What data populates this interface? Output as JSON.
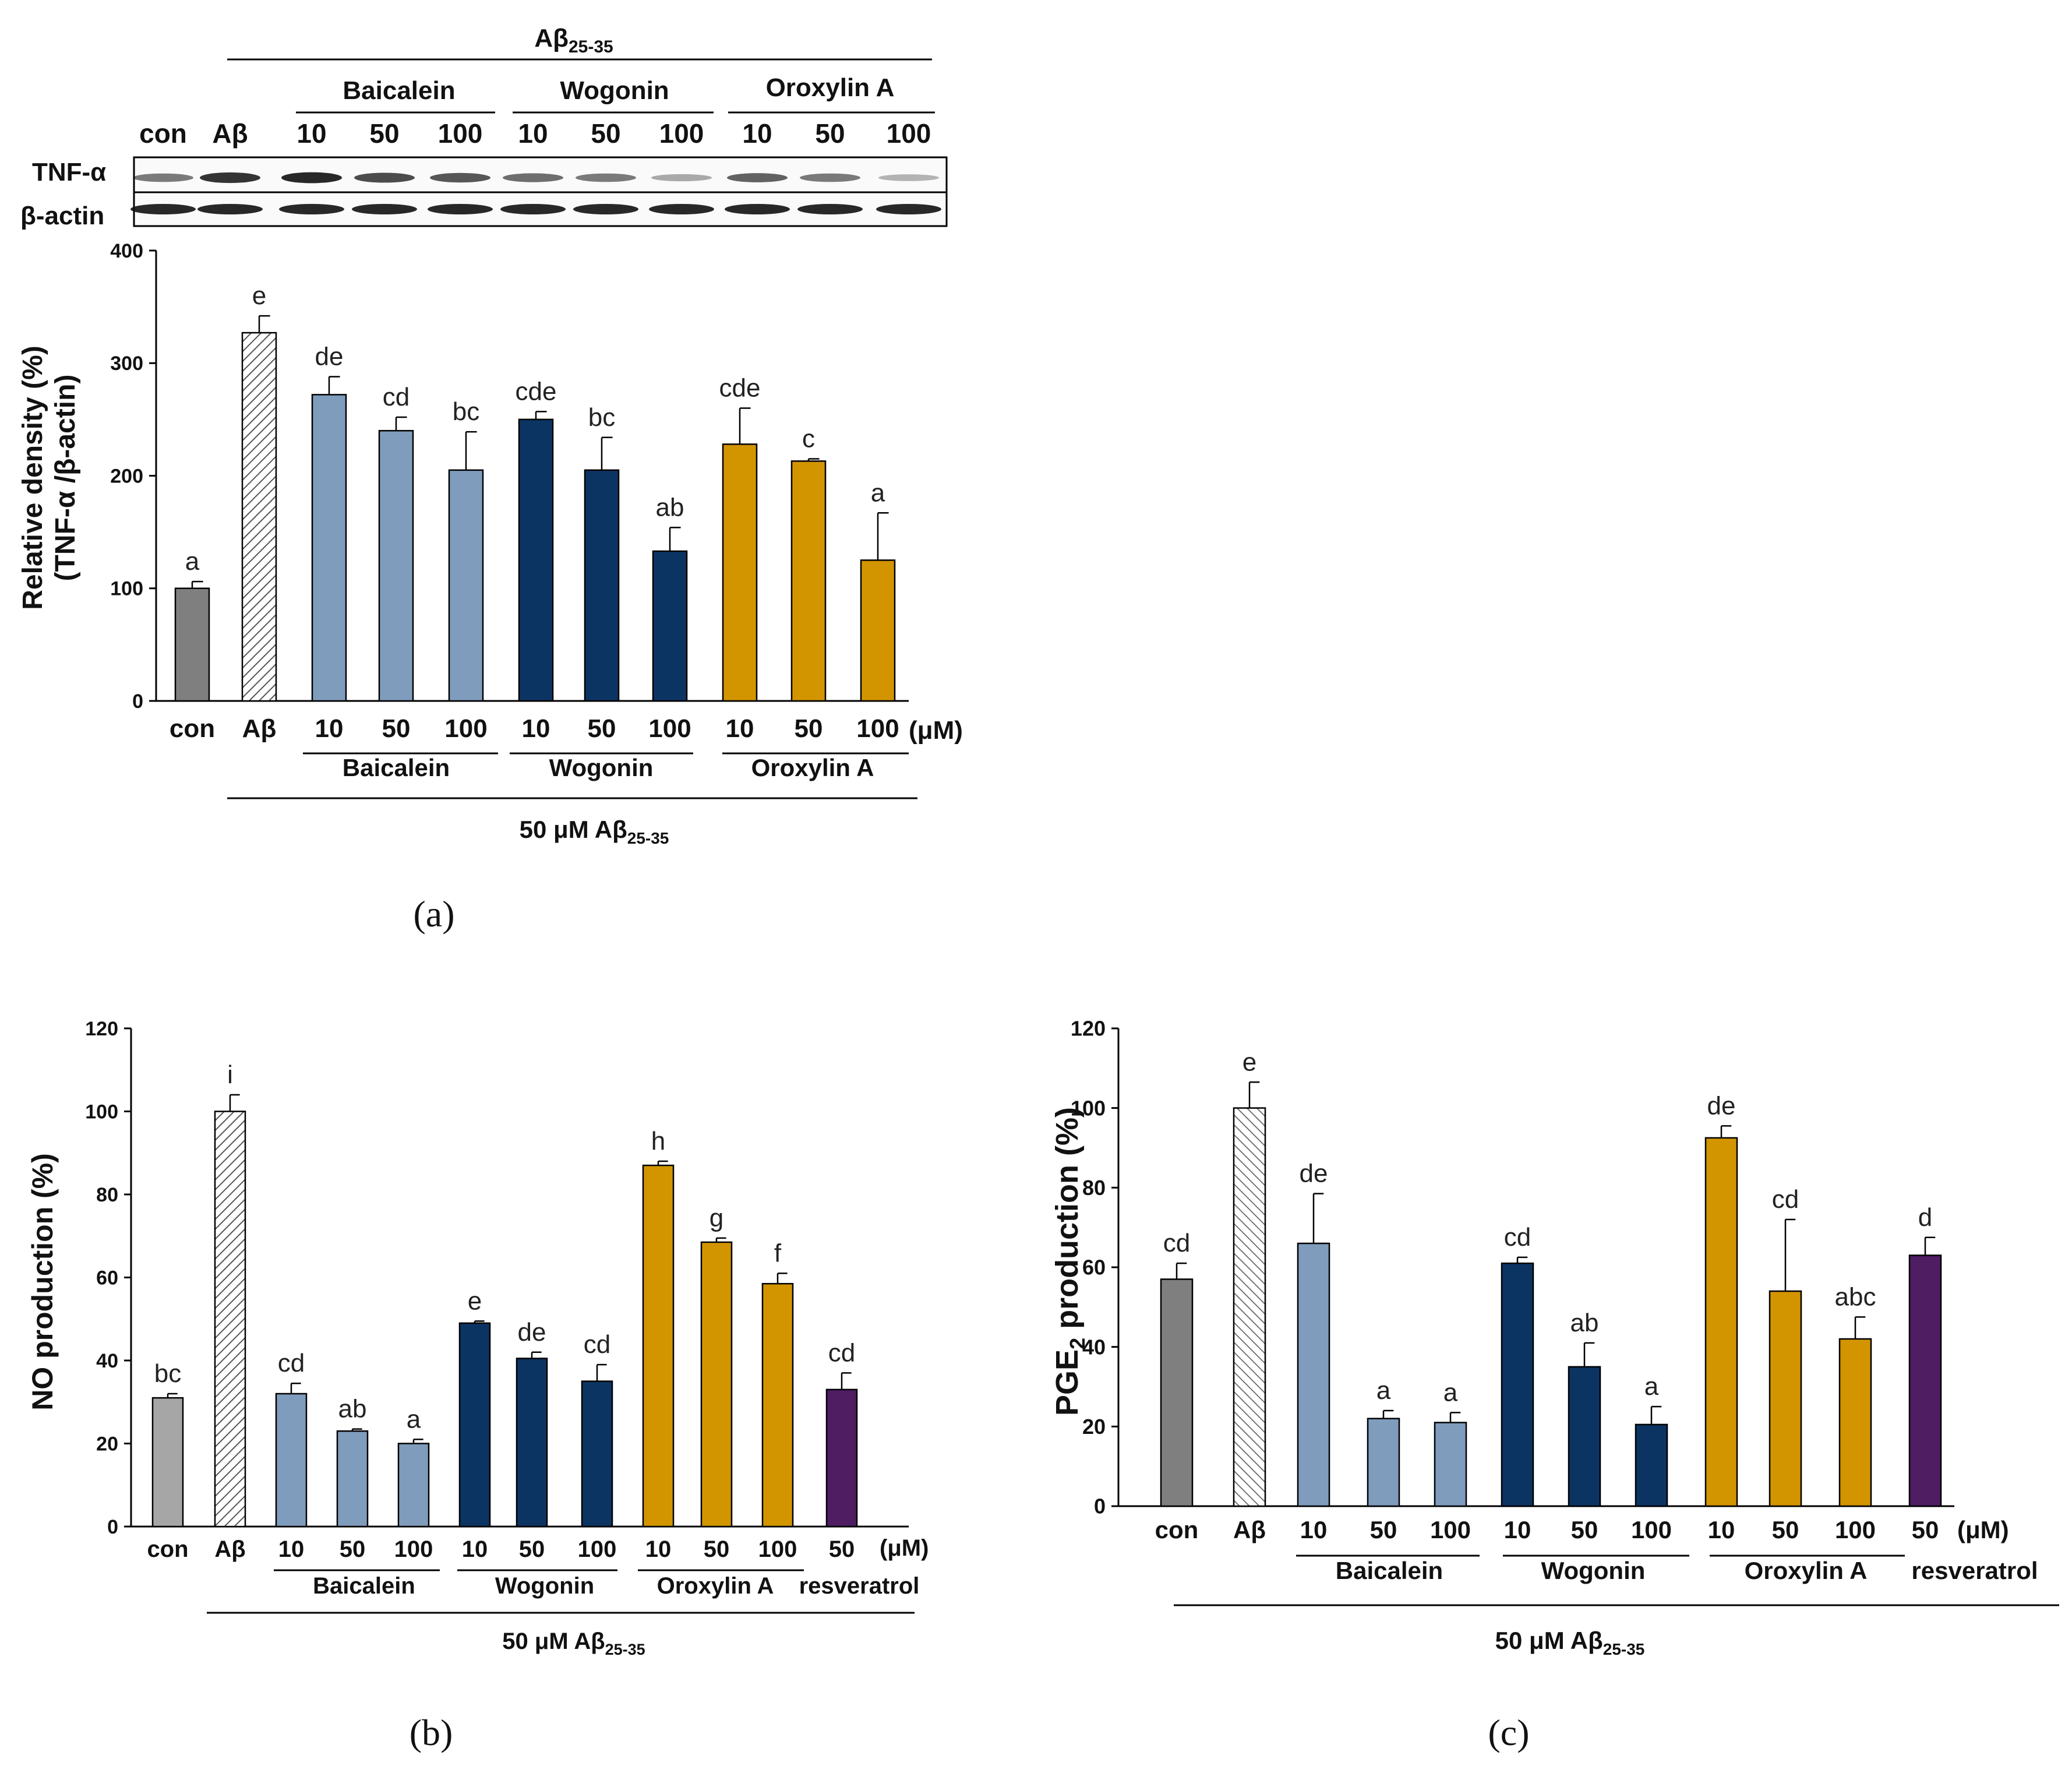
{
  "colors": {
    "con_a": "#7f7f7f",
    "con_b": "#a6a6a6",
    "baicalein": "#7f9cbd",
    "wogonin": "#0c3463",
    "oroxylin": "#d29500",
    "resveratrol": "#4e1d62",
    "axis": "#000000"
  },
  "labels": {
    "ab2535_base": "Aβ",
    "ab2535_sub": "25-35",
    "ab50_base": "50 μM Aβ",
    "ab50_sub": "25-35",
    "um": "(μM)",
    "con": "con",
    "abeta": "Aβ",
    "baicalein": "Baicalein",
    "baicalein_b": "Baicalein",
    "wogonin": "Wogonin",
    "oroxylin": "Oroxylin A",
    "resveratrol": "resveratrol",
    "tnf": "TNF-α",
    "bactin": "β-actin",
    "panel_a": "(a)",
    "panel_b": "(b)",
    "panel_c": "(c)"
  },
  "blot": {
    "lanes": [
      "con",
      "Aβ",
      "10",
      "50",
      "100",
      "10",
      "50",
      "100",
      "10",
      "50",
      "100"
    ],
    "tnf_intensity": [
      0.55,
      0.85,
      0.9,
      0.75,
      0.7,
      0.6,
      0.55,
      0.35,
      0.65,
      0.55,
      0.3
    ],
    "actin_intensity": [
      0.9,
      0.9,
      0.9,
      0.9,
      0.9,
      0.9,
      0.9,
      0.9,
      0.9,
      0.9,
      0.9
    ]
  },
  "chart_data": [
    {
      "id": "a",
      "type": "bar",
      "ylabel_line1": "Relative density (%)",
      "ylabel_line2": "(TNF-α /β-actin)",
      "ylim": [
        0,
        400
      ],
      "yticks": [
        0,
        100,
        200,
        300,
        400
      ],
      "categories": [
        "con",
        "Aβ",
        "10",
        "50",
        "100",
        "10",
        "50",
        "100",
        "10",
        "50",
        "100"
      ],
      "values": [
        100,
        327,
        272,
        240,
        205,
        250,
        205,
        133,
        228,
        213,
        125
      ],
      "errors": [
        6,
        15,
        16,
        12,
        34,
        7,
        29,
        21,
        32,
        2,
        42
      ],
      "letters": [
        "a",
        "e",
        "de",
        "cd",
        "bc",
        "cde",
        "bc",
        "ab",
        "cde",
        "c",
        "a"
      ],
      "groups": [
        "con",
        "ab",
        "baicalein",
        "baicalein",
        "baicalein",
        "wogonin",
        "wogonin",
        "wogonin",
        "oroxylin",
        "oroxylin",
        "oroxylin"
      ]
    },
    {
      "id": "b",
      "type": "bar",
      "ylabel_line1": "NO production (%)",
      "ylim": [
        0,
        120
      ],
      "yticks": [
        0,
        20,
        40,
        60,
        80,
        100,
        120
      ],
      "categories": [
        "con",
        "Aβ",
        "10",
        "50",
        "100",
        "10",
        "50",
        "100",
        "10",
        "50",
        "100",
        "50"
      ],
      "values": [
        31,
        100,
        32,
        23,
        20,
        49,
        40.5,
        35,
        87,
        68.5,
        58.5,
        33
      ],
      "errors": [
        1,
        4,
        2.5,
        0.5,
        1,
        0.5,
        1.5,
        4,
        1,
        1,
        2.5,
        4
      ],
      "letters": [
        "bc",
        "i",
        "cd",
        "ab",
        "a",
        "e",
        "de",
        "cd",
        "h",
        "g",
        "f",
        "cd"
      ],
      "groups": [
        "con_b",
        "ab",
        "baicalein",
        "baicalein",
        "baicalein",
        "wogonin",
        "wogonin",
        "wogonin",
        "oroxylin",
        "oroxylin",
        "oroxylin",
        "resveratrol"
      ]
    },
    {
      "id": "c",
      "type": "bar",
      "ylabel_base": "PGE",
      "ylabel_sub": "2",
      "ylabel_rest": " production (%)",
      "ylim": [
        0,
        120
      ],
      "yticks": [
        0,
        20,
        40,
        60,
        80,
        100,
        120
      ],
      "categories": [
        "con",
        "Aβ",
        "10",
        "50",
        "100",
        "10",
        "50",
        "100",
        "10",
        "50",
        "100",
        "50"
      ],
      "values": [
        57,
        100,
        66,
        22,
        21,
        61,
        35,
        20.5,
        92.5,
        54,
        42,
        63
      ],
      "errors": [
        4,
        6.5,
        12.5,
        2,
        2.5,
        1.5,
        6,
        4.5,
        3,
        18,
        5.5,
        4.5
      ],
      "letters": [
        "cd",
        "e",
        "de",
        "a",
        "a",
        "cd",
        "ab",
        "a",
        "de",
        "cd",
        "abc",
        "d"
      ],
      "groups": [
        "con",
        "ab",
        "baicalein",
        "baicalein",
        "baicalein",
        "wogonin",
        "wogonin",
        "wogonin",
        "oroxylin",
        "oroxylin",
        "oroxylin",
        "resveratrol"
      ]
    }
  ]
}
